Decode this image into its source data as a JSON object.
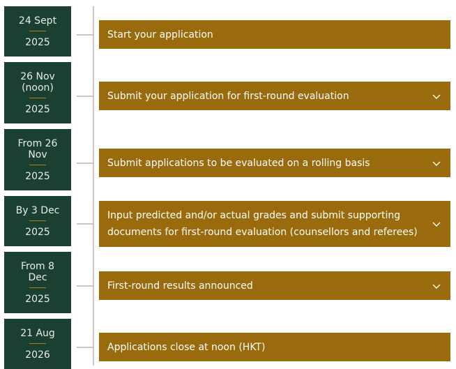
{
  "colors": {
    "date_bg": "#1b3f30",
    "bar_bg": "#9a6b0c",
    "separator": "#b07d14",
    "line": "#c8c8c8"
  },
  "items": [
    {
      "date": "24 Sept",
      "year": "2025",
      "title": "Start your application",
      "expandable": false
    },
    {
      "date": "26 Nov (noon)",
      "year": "2025",
      "title": "Submit your application for first-round evaluation",
      "expandable": true
    },
    {
      "date": "From 26 Nov",
      "year": "2025",
      "title": "Submit applications to be evaluated on a rolling basis",
      "expandable": true
    },
    {
      "date": "By 3 Dec",
      "year": "2025",
      "title": "Input predicted and/or actual grades and submit supporting documents for first-round evaluation (counsellors and referees)",
      "expandable": true
    },
    {
      "date": "From 8 Dec",
      "year": "2025",
      "title": "First-round results announced",
      "expandable": true
    },
    {
      "date": "21 Aug",
      "year": "2026",
      "title": "Applications close at noon (HKT)",
      "expandable": false
    }
  ]
}
